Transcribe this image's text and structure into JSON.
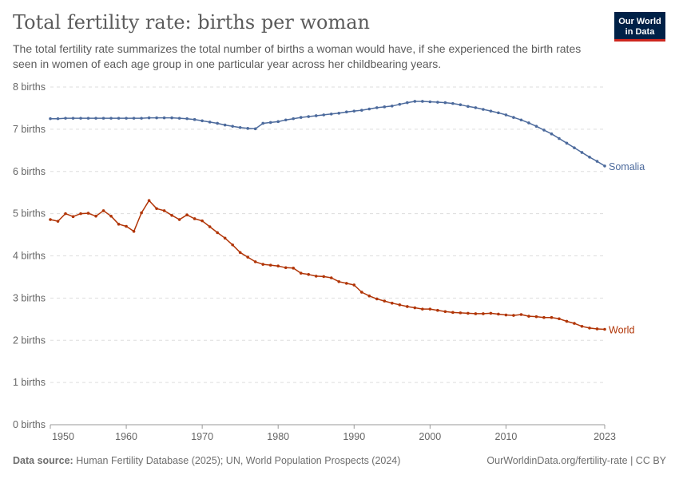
{
  "header": {
    "title": "Total fertility rate: births per woman",
    "subtitle": "The total fertility rate summarizes the total number of births a woman would have, if she experienced the birth rates seen in women of each age group in one particular year across her childbearing years."
  },
  "logo": {
    "line1": "Our World",
    "line2": "in Data",
    "bg_color": "#002147",
    "accent_color": "#ce261e"
  },
  "footer": {
    "source_label": "Data source:",
    "source_text": "Human Fertility Database (2025); UN, World Population Prospects (2024)",
    "right_text": "OurWorldinData.org/fertility-rate | CC BY"
  },
  "chart_data": {
    "type": "line",
    "title": "Total fertility rate: births per woman",
    "ylim": [
      0,
      8
    ],
    "y_ticks": [
      0,
      1,
      2,
      3,
      4,
      5,
      6,
      7,
      8
    ],
    "y_tick_labels": [
      "0 births",
      "1 births",
      "2 births",
      "3 births",
      "4 births",
      "5 births",
      "6 births",
      "7 births",
      "8 births"
    ],
    "xlim": [
      1950,
      2023
    ],
    "x_ticks": [
      1950,
      1960,
      1970,
      1980,
      1990,
      2000,
      2010,
      2023
    ],
    "x_tick_labels": [
      "1950",
      "1960",
      "1970",
      "1980",
      "1990",
      "2000",
      "2010",
      "2023"
    ],
    "grid": "horizontal dashed",
    "series": [
      {
        "name": "Somalia",
        "color": "#4c6a9c",
        "x": [
          1950,
          1951,
          1952,
          1953,
          1954,
          1955,
          1956,
          1957,
          1958,
          1959,
          1960,
          1961,
          1962,
          1963,
          1964,
          1965,
          1966,
          1967,
          1968,
          1969,
          1970,
          1971,
          1972,
          1973,
          1974,
          1975,
          1976,
          1977,
          1978,
          1979,
          1980,
          1981,
          1982,
          1983,
          1984,
          1985,
          1986,
          1987,
          1988,
          1989,
          1990,
          1991,
          1992,
          1993,
          1994,
          1995,
          1996,
          1997,
          1998,
          1999,
          2000,
          2001,
          2002,
          2003,
          2004,
          2005,
          2006,
          2007,
          2008,
          2009,
          2010,
          2011,
          2012,
          2013,
          2014,
          2015,
          2016,
          2017,
          2018,
          2019,
          2020,
          2021,
          2022,
          2023
        ],
        "y": [
          7.25,
          7.25,
          7.26,
          7.26,
          7.26,
          7.26,
          7.26,
          7.26,
          7.26,
          7.26,
          7.26,
          7.26,
          7.26,
          7.27,
          7.27,
          7.27,
          7.27,
          7.26,
          7.25,
          7.23,
          7.2,
          7.17,
          7.14,
          7.1,
          7.07,
          7.04,
          7.02,
          7.01,
          7.14,
          7.16,
          7.18,
          7.22,
          7.25,
          7.28,
          7.3,
          7.32,
          7.34,
          7.36,
          7.38,
          7.41,
          7.43,
          7.45,
          7.48,
          7.51,
          7.53,
          7.55,
          7.59,
          7.63,
          7.66,
          7.66,
          7.65,
          7.64,
          7.63,
          7.61,
          7.58,
          7.54,
          7.51,
          7.47,
          7.43,
          7.39,
          7.34,
          7.28,
          7.22,
          7.15,
          7.07,
          6.98,
          6.89,
          6.78,
          6.67,
          6.56,
          6.45,
          6.34,
          6.24,
          6.13
        ]
      },
      {
        "name": "World",
        "color": "#b13507",
        "x": [
          1950,
          1951,
          1952,
          1953,
          1954,
          1955,
          1956,
          1957,
          1958,
          1959,
          1960,
          1961,
          1962,
          1963,
          1964,
          1965,
          1966,
          1967,
          1968,
          1969,
          1970,
          1971,
          1972,
          1973,
          1974,
          1975,
          1976,
          1977,
          1978,
          1979,
          1980,
          1981,
          1982,
          1983,
          1984,
          1985,
          1986,
          1987,
          1988,
          1989,
          1990,
          1991,
          1992,
          1993,
          1994,
          1995,
          1996,
          1997,
          1998,
          1999,
          2000,
          2001,
          2002,
          2003,
          2004,
          2005,
          2006,
          2007,
          2008,
          2009,
          2010,
          2011,
          2012,
          2013,
          2014,
          2015,
          2016,
          2017,
          2018,
          2019,
          2020,
          2021,
          2022,
          2023
        ],
        "y": [
          4.86,
          4.82,
          5.0,
          4.93,
          5.0,
          5.01,
          4.94,
          5.07,
          4.94,
          4.75,
          4.7,
          4.58,
          5.02,
          5.31,
          5.12,
          5.07,
          4.96,
          4.86,
          4.97,
          4.88,
          4.83,
          4.69,
          4.55,
          4.42,
          4.26,
          4.08,
          3.97,
          3.86,
          3.8,
          3.78,
          3.76,
          3.72,
          3.71,
          3.59,
          3.56,
          3.52,
          3.51,
          3.48,
          3.39,
          3.35,
          3.31,
          3.14,
          3.05,
          2.98,
          2.93,
          2.88,
          2.84,
          2.8,
          2.77,
          2.74,
          2.74,
          2.71,
          2.68,
          2.66,
          2.65,
          2.64,
          2.63,
          2.63,
          2.64,
          2.62,
          2.6,
          2.59,
          2.61,
          2.57,
          2.56,
          2.54,
          2.54,
          2.51,
          2.45,
          2.4,
          2.33,
          2.29,
          2.27,
          2.26
        ]
      }
    ]
  }
}
